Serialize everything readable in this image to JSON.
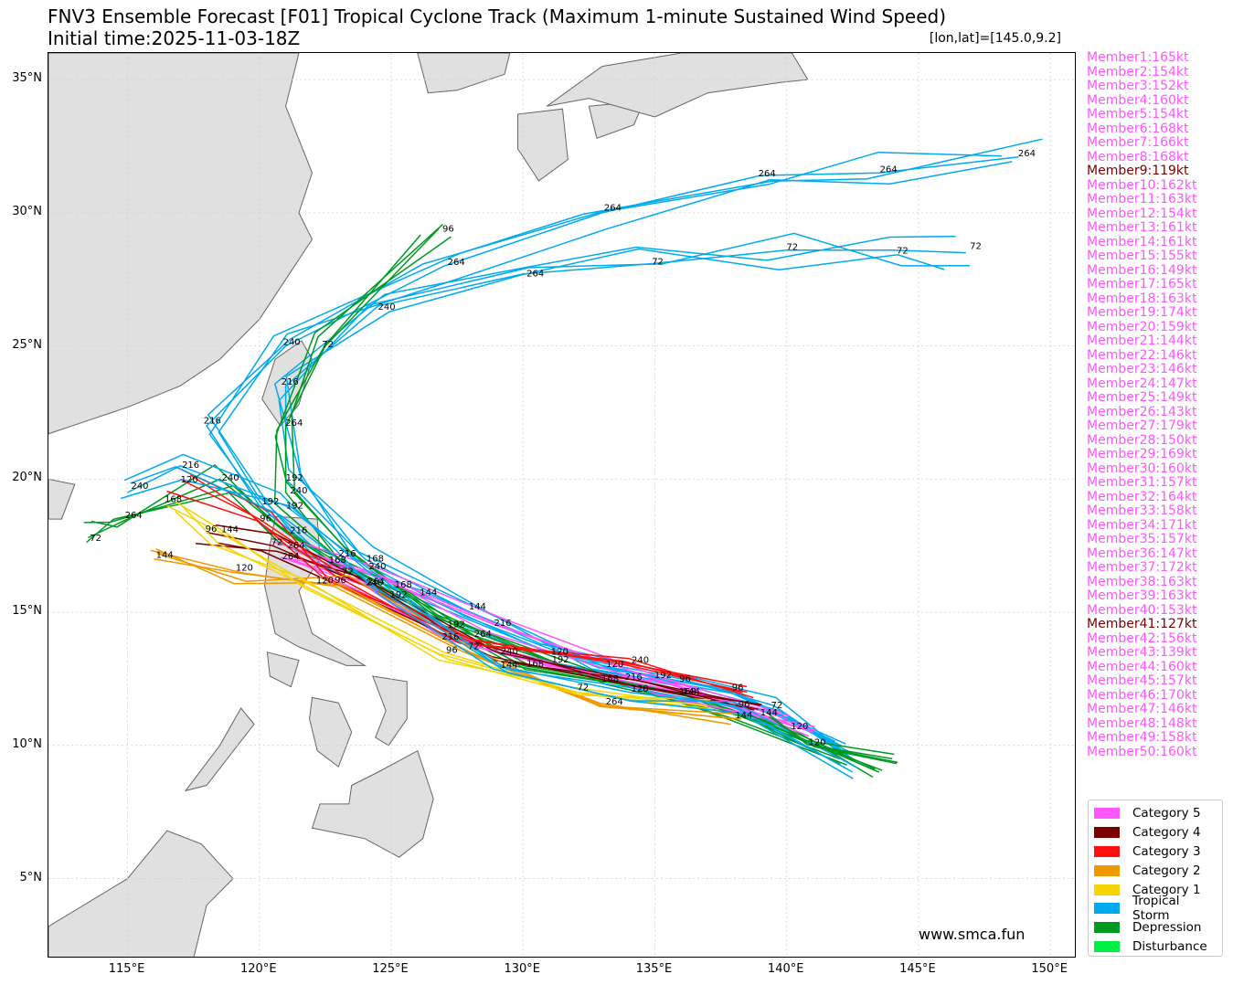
{
  "header": {
    "title": "FNV3 Ensemble Forecast [F01] Tropical Cyclone Track (Maximum 1-minute Sustained Wind Speed)",
    "subtitle": "Initial time:2025-11-03-18Z",
    "coord_readout": "[lon,lat]=[145.0,9.2]"
  },
  "map": {
    "lon_range": [
      112,
      151
    ],
    "lat_range": [
      2,
      36
    ],
    "lat_labels": [
      "35°N",
      "30°N",
      "25°N",
      "20°N",
      "15°N",
      "10°N",
      "5°N"
    ],
    "lat_values": [
      35,
      30,
      25,
      20,
      15,
      10,
      5
    ],
    "lon_labels": [
      "115°E",
      "120°E",
      "125°E",
      "130°E",
      "135°E",
      "140°E",
      "145°E",
      "150°E"
    ],
    "lon_values": [
      115,
      120,
      125,
      130,
      135,
      140,
      145,
      150
    ],
    "land_color": "#e0e0e0",
    "coast_color": "#666666",
    "grid": true
  },
  "chart_data": {
    "type": "track",
    "categories": [
      {
        "name": "Category 5",
        "color": "#ff55ff"
      },
      {
        "name": "Category 4",
        "color": "#7a0000"
      },
      {
        "name": "Category 3",
        "color": "#ff1010"
      },
      {
        "name": "Category 2",
        "color": "#ee9900"
      },
      {
        "name": "Category 1",
        "color": "#f5d400"
      },
      {
        "name": "Tropical Storm",
        "color": "#00aaee"
      },
      {
        "name": "Depression",
        "color": "#009922"
      },
      {
        "name": "Disturbance",
        "color": "#00ee44"
      }
    ],
    "representative_tracks": [
      {
        "category": "Tropical Storm",
        "points": [
          [
            142.5,
            9.5
          ],
          [
            139.5,
            11.5
          ],
          [
            136,
            12.5
          ],
          [
            131,
            13.5
          ],
          [
            126,
            15.5
          ],
          [
            122.5,
            17
          ],
          [
            120,
            19
          ],
          [
            118,
            22
          ],
          [
            121,
            25
          ],
          [
            127,
            28
          ],
          [
            133,
            30
          ],
          [
            139,
            31.4
          ],
          [
            143.5,
            31.5
          ],
          [
            148.8,
            32.1
          ]
        ]
      },
      {
        "category": "Tropical Storm",
        "points": [
          [
            142,
            10
          ],
          [
            138,
            12
          ],
          [
            133,
            13
          ],
          [
            128,
            15
          ],
          [
            124,
            17
          ],
          [
            121,
            20
          ],
          [
            121,
            23.5
          ],
          [
            124.5,
            26.5
          ],
          [
            130,
            27.7
          ],
          [
            135,
            28.1
          ],
          [
            140,
            28.6
          ],
          [
            144,
            28.6
          ],
          [
            146.8,
            28.5
          ]
        ]
      },
      {
        "category": "Depression",
        "points": [
          [
            143.5,
            9
          ],
          [
            140,
            10.5
          ],
          [
            136,
            12
          ],
          [
            130,
            13
          ],
          [
            125,
            15.5
          ],
          [
            121,
            18
          ],
          [
            118.5,
            20
          ],
          [
            115,
            18.5
          ],
          [
            113.5,
            17.8
          ]
        ]
      },
      {
        "category": "Depression",
        "points": [
          [
            142,
            9.5
          ],
          [
            138,
            11
          ],
          [
            133,
            12.5
          ],
          [
            127,
            14.5
          ],
          [
            123,
            17
          ],
          [
            121,
            19.5
          ],
          [
            121,
            22
          ],
          [
            122.5,
            25
          ],
          [
            126.8,
            29.4
          ]
        ]
      },
      {
        "category": "Category 5",
        "points": [
          [
            141,
            10.5
          ],
          [
            136,
            12
          ],
          [
            131,
            13
          ],
          [
            127,
            14
          ],
          [
            124,
            16
          ],
          [
            121,
            17
          ]
        ]
      },
      {
        "category": "Category 5",
        "points": [
          [
            140,
            11
          ],
          [
            135,
            12.5
          ],
          [
            129,
            14.5
          ],
          [
            124,
            16.5
          ],
          [
            121,
            17.5
          ]
        ]
      },
      {
        "category": "Category 4",
        "points": [
          [
            139,
            11.5
          ],
          [
            134,
            12.5
          ],
          [
            129,
            13.5
          ],
          [
            124,
            16
          ],
          [
            120.5,
            17.5
          ],
          [
            118,
            18
          ]
        ]
      },
      {
        "category": "Category 3",
        "points": [
          [
            138.5,
            12
          ],
          [
            134,
            13
          ],
          [
            128,
            14
          ],
          [
            123,
            16.5
          ],
          [
            120,
            18.5
          ],
          [
            117,
            20
          ]
        ]
      },
      {
        "category": "Category 2",
        "points": [
          [
            138,
            11
          ],
          [
            133,
            11.5
          ],
          [
            128,
            13.5
          ],
          [
            123,
            16
          ],
          [
            119,
            16.5
          ],
          [
            116,
            17
          ]
        ]
      },
      {
        "category": "Category 1",
        "points": [
          [
            137,
            11.5
          ],
          [
            132,
            12
          ],
          [
            127,
            13.5
          ],
          [
            122,
            16
          ],
          [
            118.5,
            18
          ],
          [
            116.5,
            19
          ]
        ]
      },
      {
        "category": "Tropical Storm",
        "points": [
          [
            142.5,
            9
          ],
          [
            138,
            11.5
          ],
          [
            134,
            12
          ],
          [
            129,
            13
          ],
          [
            125,
            16
          ],
          [
            121,
            19
          ],
          [
            117,
            20.5
          ],
          [
            115,
            19.5
          ]
        ]
      },
      {
        "category": "Depression",
        "points": [
          [
            144,
            9.5
          ],
          [
            141,
            10
          ],
          [
            139,
            11
          ]
        ]
      }
    ],
    "hour_labels": [
      "72",
      "96",
      "120",
      "144",
      "168",
      "192",
      "216",
      "240",
      "264",
      "48"
    ]
  },
  "members": [
    {
      "label": "Member1:165kt",
      "color": "#ff55ff"
    },
    {
      "label": "Member2:154kt",
      "color": "#ff55ff"
    },
    {
      "label": "Member3:152kt",
      "color": "#ff55ff"
    },
    {
      "label": "Member4:160kt",
      "color": "#ff55ff"
    },
    {
      "label": "Member5:154kt",
      "color": "#ff55ff"
    },
    {
      "label": "Member6:168kt",
      "color": "#ff55ff"
    },
    {
      "label": "Member7:166kt",
      "color": "#ff55ff"
    },
    {
      "label": "Member8:168kt",
      "color": "#ff55ff"
    },
    {
      "label": "Member9:119kt",
      "color": "#7a0000"
    },
    {
      "label": "Member10:162kt",
      "color": "#ff55ff"
    },
    {
      "label": "Member11:163kt",
      "color": "#ff55ff"
    },
    {
      "label": "Member12:154kt",
      "color": "#ff55ff"
    },
    {
      "label": "Member13:161kt",
      "color": "#ff55ff"
    },
    {
      "label": "Member14:161kt",
      "color": "#ff55ff"
    },
    {
      "label": "Member15:155kt",
      "color": "#ff55ff"
    },
    {
      "label": "Member16:149kt",
      "color": "#ff55ff"
    },
    {
      "label": "Member17:165kt",
      "color": "#ff55ff"
    },
    {
      "label": "Member18:163kt",
      "color": "#ff55ff"
    },
    {
      "label": "Member19:174kt",
      "color": "#ff55ff"
    },
    {
      "label": "Member20:159kt",
      "color": "#ff55ff"
    },
    {
      "label": "Member21:144kt",
      "color": "#ff55ff"
    },
    {
      "label": "Member22:146kt",
      "color": "#ff55ff"
    },
    {
      "label": "Member23:146kt",
      "color": "#ff55ff"
    },
    {
      "label": "Member24:147kt",
      "color": "#ff55ff"
    },
    {
      "label": "Member25:149kt",
      "color": "#ff55ff"
    },
    {
      "label": "Member26:143kt",
      "color": "#ff55ff"
    },
    {
      "label": "Member27:179kt",
      "color": "#ff55ff"
    },
    {
      "label": "Member28:150kt",
      "color": "#ff55ff"
    },
    {
      "label": "Member29:169kt",
      "color": "#ff55ff"
    },
    {
      "label": "Member30:160kt",
      "color": "#ff55ff"
    },
    {
      "label": "Member31:157kt",
      "color": "#ff55ff"
    },
    {
      "label": "Member32:164kt",
      "color": "#ff55ff"
    },
    {
      "label": "Member33:158kt",
      "color": "#ff55ff"
    },
    {
      "label": "Member34:171kt",
      "color": "#ff55ff"
    },
    {
      "label": "Member35:157kt",
      "color": "#ff55ff"
    },
    {
      "label": "Member36:147kt",
      "color": "#ff55ff"
    },
    {
      "label": "Member37:172kt",
      "color": "#ff55ff"
    },
    {
      "label": "Member38:163kt",
      "color": "#ff55ff"
    },
    {
      "label": "Member39:163kt",
      "color": "#ff55ff"
    },
    {
      "label": "Member40:153kt",
      "color": "#ff55ff"
    },
    {
      "label": "Member41:127kt",
      "color": "#7a0000"
    },
    {
      "label": "Member42:156kt",
      "color": "#ff55ff"
    },
    {
      "label": "Member43:139kt",
      "color": "#ff55ff"
    },
    {
      "label": "Member44:160kt",
      "color": "#ff55ff"
    },
    {
      "label": "Member45:157kt",
      "color": "#ff55ff"
    },
    {
      "label": "Member46:170kt",
      "color": "#ff55ff"
    },
    {
      "label": "Member47:146kt",
      "color": "#ff55ff"
    },
    {
      "label": "Member48:148kt",
      "color": "#ff55ff"
    },
    {
      "label": "Member49:158kt",
      "color": "#ff55ff"
    },
    {
      "label": "Member50:160kt",
      "color": "#ff55ff"
    }
  ],
  "legend": [
    {
      "label": "Category 5",
      "color": "#ff55ff"
    },
    {
      "label": "Category 4",
      "color": "#7a0000"
    },
    {
      "label": "Category 3",
      "color": "#ff1010"
    },
    {
      "label": "Category 2",
      "color": "#ee9900"
    },
    {
      "label": "Category 1",
      "color": "#f5d400"
    },
    {
      "label": "Tropical Storm",
      "color": "#00aaee"
    },
    {
      "label": "Depression",
      "color": "#009922"
    },
    {
      "label": "Disturbance",
      "color": "#00ee44"
    }
  ],
  "website": "www.smca.fun"
}
